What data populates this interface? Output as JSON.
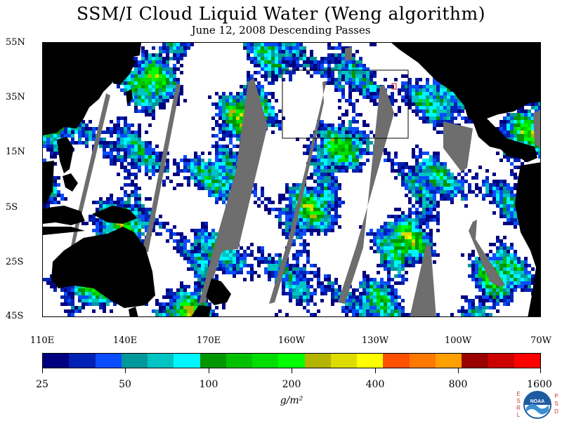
{
  "title": "SSM/I Cloud Liquid Water (Weng algorithm)",
  "subtitle": "June 12, 2008  Descending Passes",
  "map": {
    "colors": {
      "land": "#000000",
      "no_data": "#6e6e6e",
      "clear": "#ffffff",
      "box_outline": "#000000",
      "marker": "#cc0000"
    },
    "latitude_labels": [
      "55N",
      "35N",
      "15N",
      "5S",
      "25S",
      "45S"
    ],
    "longitude_labels": [
      "110E",
      "140E",
      "170E",
      "160W",
      "130W",
      "100W",
      "70W"
    ]
  },
  "colorbar": {
    "colors": [
      "#000080",
      "#0022b4",
      "#0a4cff",
      "#00989a",
      "#00c3c3",
      "#00f5ff",
      "#009600",
      "#00c100",
      "#00dd00",
      "#00ff00",
      "#b4b400",
      "#dcdc00",
      "#ffff00",
      "#ff5000",
      "#ff7800",
      "#ffa000",
      "#9b0000",
      "#cc0000",
      "#ff0000"
    ],
    "tick_labels": [
      "25",
      "50",
      "100",
      "200",
      "400",
      "800",
      "1600"
    ],
    "units": "g/m²"
  },
  "logo": {
    "left_letters": "ESRL",
    "right_letters": "PSD",
    "center_text": "NOAA"
  }
}
